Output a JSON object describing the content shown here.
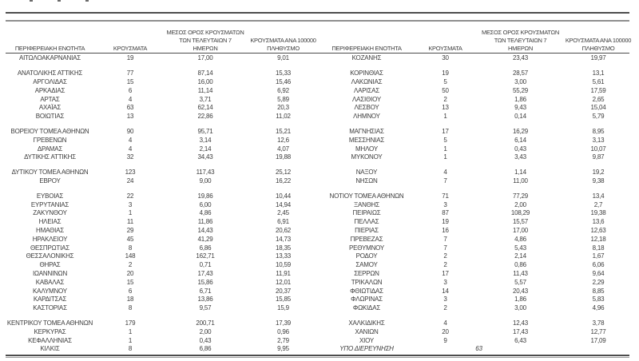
{
  "report_table": {
    "colors": {
      "text": "#3c3c3c",
      "rule_dark": "#4d4d4d",
      "rule_light": "#8f8f8f",
      "background": "#ffffff"
    },
    "headers": {
      "region": "ΠΕΡΙΦΕΡΕΙΑΚΗ ΕΝΟΤΗΤΑ",
      "cases": "ΚΡΟΥΣΜΑΤΑ",
      "avg7_line1": "ΜΕΣΟΣ ΟΡΟΣ ΚΡΟΥΣΜΑΤΩΝ",
      "avg7_line2": "ΤΩΝ ΤΕΛΕΥΤΑΙΩΝ 7",
      "avg7_line3": "ΗΜΕΡΩΝ",
      "per100k_line1": "ΚΡΟΥΣΜΑΤΑ ΑΝΑ 100000",
      "per100k_line2": "ΠΛΗΘΥΣΜΟ"
    },
    "blank_after_indexes": [
      0,
      6,
      10,
      12,
      26
    ],
    "left_rows": [
      {
        "region": "ΑΙΤΩΛΟΑΚΑΡΝΑΝΙΑΣ",
        "cases": "19",
        "avg7": "17,00",
        "per100k": "9,01"
      },
      {
        "region": "ΑΝΑΤΟΛΙΚΗΣ ΑΤΤΙΚΗΣ",
        "cases": "77",
        "avg7": "87,14",
        "per100k": "15,33"
      },
      {
        "region": "ΑΡΓΟΛΙΔΑΣ",
        "cases": "15",
        "avg7": "16,00",
        "per100k": "15,46"
      },
      {
        "region": "ΑΡΚΑΔΙΑΣ",
        "cases": "6",
        "avg7": "11,14",
        "per100k": "6,92"
      },
      {
        "region": "ΑΡΤΑΣ",
        "cases": "4",
        "avg7": "3,71",
        "per100k": "5,89"
      },
      {
        "region": "ΑΧΑΪΑΣ",
        "cases": "63",
        "avg7": "62,14",
        "per100k": "20,3"
      },
      {
        "region": "ΒΟΙΩΤΙΑΣ",
        "cases": "13",
        "avg7": "22,86",
        "per100k": "11,02"
      },
      {
        "region": "ΒΟΡΕΙΟΥ ΤΟΜΕΑ ΑΘΗΝΩΝ",
        "cases": "90",
        "avg7": "95,71",
        "per100k": "15,21"
      },
      {
        "region": "ΓΡΕΒΕΝΩΝ",
        "cases": "4",
        "avg7": "3,14",
        "per100k": "12,6"
      },
      {
        "region": "ΔΡΑΜΑΣ",
        "cases": "4",
        "avg7": "2,14",
        "per100k": "4,07"
      },
      {
        "region": "ΔΥΤΙΚΗΣ ΑΤΤΙΚΗΣ",
        "cases": "32",
        "avg7": "34,43",
        "per100k": "19,88"
      },
      {
        "region": "ΔΥΤΙΚΟΥ ΤΟΜΕΑ ΑΘΗΝΩΝ",
        "cases": "123",
        "avg7": "117,43",
        "per100k": "25,12"
      },
      {
        "region": "ΕΒΡΟΥ",
        "cases": "24",
        "avg7": "9,00",
        "per100k": "16,22"
      },
      {
        "region": "ΕΥΒΟΙΑΣ",
        "cases": "22",
        "avg7": "19,86",
        "per100k": "10,44"
      },
      {
        "region": "ΕΥΡΥΤΑΝΙΑΣ",
        "cases": "3",
        "avg7": "6,00",
        "per100k": "14,94"
      },
      {
        "region": "ΖΑΚΥΝΘΟΥ",
        "cases": "1",
        "avg7": "4,86",
        "per100k": "2,45"
      },
      {
        "region": "ΗΛΕΙΑΣ",
        "cases": "11",
        "avg7": "11,86",
        "per100k": "6,91"
      },
      {
        "region": "ΗΜΑΘΙΑΣ",
        "cases": "29",
        "avg7": "14,43",
        "per100k": "20,62"
      },
      {
        "region": "ΗΡΑΚΛΕΙΟΥ",
        "cases": "45",
        "avg7": "41,29",
        "per100k": "14,73"
      },
      {
        "region": "ΘΕΣΠΡΩΤΙΑΣ",
        "cases": "8",
        "avg7": "6,86",
        "per100k": "18,35"
      },
      {
        "region": "ΘΕΣΣΑΛΟΝΙΚΗΣ",
        "cases": "148",
        "avg7": "162,71",
        "per100k": "13,33"
      },
      {
        "region": "ΘΗΡΑΣ",
        "cases": "2",
        "avg7": "0,71",
        "per100k": "10,59"
      },
      {
        "region": "ΙΩΑΝΝΙΝΩΝ",
        "cases": "20",
        "avg7": "17,43",
        "per100k": "11,91"
      },
      {
        "region": "ΚΑΒΑΛΑΣ",
        "cases": "15",
        "avg7": "15,86",
        "per100k": "12,01"
      },
      {
        "region": "ΚΑΛΥΜΝΟΥ",
        "cases": "6",
        "avg7": "6,71",
        "per100k": "20,37"
      },
      {
        "region": "ΚΑΡΔΙΤΣΑΣ",
        "cases": "18",
        "avg7": "13,86",
        "per100k": "15,85"
      },
      {
        "region": "ΚΑΣΤΟΡΙΑΣ",
        "cases": "8",
        "avg7": "9,57",
        "per100k": "15,9"
      },
      {
        "region": "ΚΕΝΤΡΙΚΟΥ ΤΟΜΕΑ ΑΘΗΝΩΝ",
        "cases": "179",
        "avg7": "200,71",
        "per100k": "17,39"
      },
      {
        "region": "ΚΕΡΚΥΡΑΣ",
        "cases": "1",
        "avg7": "2,00",
        "per100k": "0,96"
      },
      {
        "region": "ΚΕΦΑΛΛΗΝΙΑΣ",
        "cases": "1",
        "avg7": "0,43",
        "per100k": "2,79"
      },
      {
        "region": "ΚΙΛΚΙΣ",
        "cases": "8",
        "avg7": "6,86",
        "per100k": "9,95"
      }
    ],
    "right_rows": [
      {
        "region": "ΚΟΖΑΝΗΣ",
        "cases": "30",
        "avg7": "23,43",
        "per100k": "19,97"
      },
      {
        "region": "ΚΟΡΙΝΘΙΑΣ",
        "cases": "19",
        "avg7": "28,57",
        "per100k": "13,1"
      },
      {
        "region": "ΛΑΚΩΝΙΑΣ",
        "cases": "5",
        "avg7": "3,00",
        "per100k": "5,61"
      },
      {
        "region": "ΛΑΡΙΣΑΣ",
        "cases": "50",
        "avg7": "55,29",
        "per100k": "17,59"
      },
      {
        "region": "ΛΑΣΙΘΙΟΥ",
        "cases": "2",
        "avg7": "1,86",
        "per100k": "2,65"
      },
      {
        "region": "ΛΕΣΒΟΥ",
        "cases": "13",
        "avg7": "9,43",
        "per100k": "15,04"
      },
      {
        "region": "ΛΗΜΝΟΥ",
        "cases": "1",
        "avg7": "0,14",
        "per100k": "5,79"
      },
      {
        "region": "ΜΑΓΝΗΣΙΑΣ",
        "cases": "17",
        "avg7": "16,29",
        "per100k": "8,95"
      },
      {
        "region": "ΜΕΣΣΗΝΙΑΣ",
        "cases": "5",
        "avg7": "6,14",
        "per100k": "3,13"
      },
      {
        "region": "ΜΗΛΟΥ",
        "cases": "1",
        "avg7": "0,43",
        "per100k": "10,07"
      },
      {
        "region": "ΜΥΚΟΝΟΥ",
        "cases": "1",
        "avg7": "3,43",
        "per100k": "9,87"
      },
      {
        "region": "ΝΑΞΟΥ",
        "cases": "4",
        "avg7": "1,14",
        "per100k": "19,2"
      },
      {
        "region": "ΝΗΣΩΝ",
        "cases": "7",
        "avg7": "11,00",
        "per100k": "9,38"
      },
      {
        "region": "ΝΟΤΙΟΥ ΤΟΜΕΑ ΑΘΗΝΩΝ",
        "cases": "71",
        "avg7": "77,29",
        "per100k": "13,4"
      },
      {
        "region": "ΞΑΝΘΗΣ",
        "cases": "3",
        "avg7": "2,00",
        "per100k": "2,7"
      },
      {
        "region": "ΠΕΙΡΑΙΩΣ",
        "cases": "87",
        "avg7": "108,29",
        "per100k": "19,38"
      },
      {
        "region": "ΠΕΛΛΑΣ",
        "cases": "19",
        "avg7": "15,57",
        "per100k": "13,6"
      },
      {
        "region": "ΠΙΕΡΙΑΣ",
        "cases": "16",
        "avg7": "17,00",
        "per100k": "12,63"
      },
      {
        "region": "ΠΡΕΒΕΖΑΣ",
        "cases": "7",
        "avg7": "4,86",
        "per100k": "12,18"
      },
      {
        "region": "ΡΕΘΥΜΝΟΥ",
        "cases": "7",
        "avg7": "5,43",
        "per100k": "8,18"
      },
      {
        "region": "ΡΟΔΟΥ",
        "cases": "2",
        "avg7": "2,14",
        "per100k": "1,67"
      },
      {
        "region": "ΣΑΜΟΥ",
        "cases": "2",
        "avg7": "0,86",
        "per100k": "6,06"
      },
      {
        "region": "ΣΕΡΡΩΝ",
        "cases": "17",
        "avg7": "11,43",
        "per100k": "9,64"
      },
      {
        "region": "ΤΡΙΚΑΛΩΝ",
        "cases": "3",
        "avg7": "5,57",
        "per100k": "2,29"
      },
      {
        "region": "ΦΘΙΩΤΙΔΑΣ",
        "cases": "14",
        "avg7": "20,43",
        "per100k": "8,85"
      },
      {
        "region": "ΦΛΩΡΙΝΑΣ",
        "cases": "3",
        "avg7": "1,86",
        "per100k": "5,83"
      },
      {
        "region": "ΦΩΚΙΔΑΣ",
        "cases": "2",
        "avg7": "3,00",
        "per100k": "4,96"
      },
      {
        "region": "ΧΑΛΚΙΔΙΚΗΣ",
        "cases": "4",
        "avg7": "12,43",
        "per100k": "3,78"
      },
      {
        "region": "ΧΑΝΙΩΝ",
        "cases": "20",
        "avg7": "17,43",
        "per100k": "12,77"
      },
      {
        "region": "ΧΙΟΥ",
        "cases": "9",
        "avg7": "6,43",
        "per100k": "17,09"
      },
      {
        "region": "ΥΠΟ ΔΙΕΡΕΥΝΗΣΗ",
        "cases": "63",
        "avg7": "",
        "per100k": "",
        "italic": true
      }
    ]
  }
}
